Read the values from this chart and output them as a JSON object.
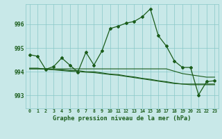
{
  "title": "Graphe pression niveau de la mer (hPa)",
  "background_color": "#c8e8e8",
  "grid_color": "#88c8c8",
  "line_color": "#1a5c1a",
  "x_labels": [
    "0",
    "1",
    "2",
    "3",
    "4",
    "5",
    "6",
    "7",
    "8",
    "9",
    "10",
    "11",
    "12",
    "13",
    "14",
    "15",
    "16",
    "17",
    "18",
    "19",
    "20",
    "21",
    "22",
    "23"
  ],
  "yticks": [
    993,
    994,
    995,
    996
  ],
  "ylim": [
    992.45,
    996.85
  ],
  "xlim": [
    -0.5,
    23.5
  ],
  "main_line": [
    994.72,
    994.65,
    994.1,
    994.22,
    994.58,
    994.28,
    993.98,
    994.82,
    994.28,
    994.88,
    995.82,
    995.92,
    996.05,
    996.12,
    996.32,
    996.65,
    995.52,
    995.08,
    994.45,
    994.18,
    994.18,
    993.02,
    993.58,
    993.62
  ],
  "flat_line1": [
    994.12,
    994.12,
    994.12,
    994.12,
    994.12,
    994.12,
    994.12,
    994.12,
    994.12,
    994.12,
    994.12,
    994.12,
    994.12,
    994.12,
    994.12,
    994.12,
    994.12,
    994.12,
    994.02,
    993.92,
    993.87,
    993.82,
    993.77,
    993.77
  ],
  "flat_line2": [
    994.12,
    994.12,
    994.12,
    994.08,
    994.08,
    994.05,
    994.05,
    994.0,
    994.0,
    993.95,
    993.9,
    993.88,
    993.82,
    993.78,
    993.72,
    993.68,
    993.62,
    993.58,
    993.52,
    993.48,
    993.45,
    993.45,
    993.45,
    993.45
  ],
  "flat_line3": [
    994.15,
    994.15,
    994.1,
    994.08,
    994.05,
    994.02,
    994.0,
    993.98,
    993.96,
    993.92,
    993.88,
    993.85,
    993.8,
    993.75,
    993.7,
    993.65,
    993.6,
    993.55,
    993.5,
    993.48,
    993.48,
    993.48,
    993.48,
    993.48
  ]
}
